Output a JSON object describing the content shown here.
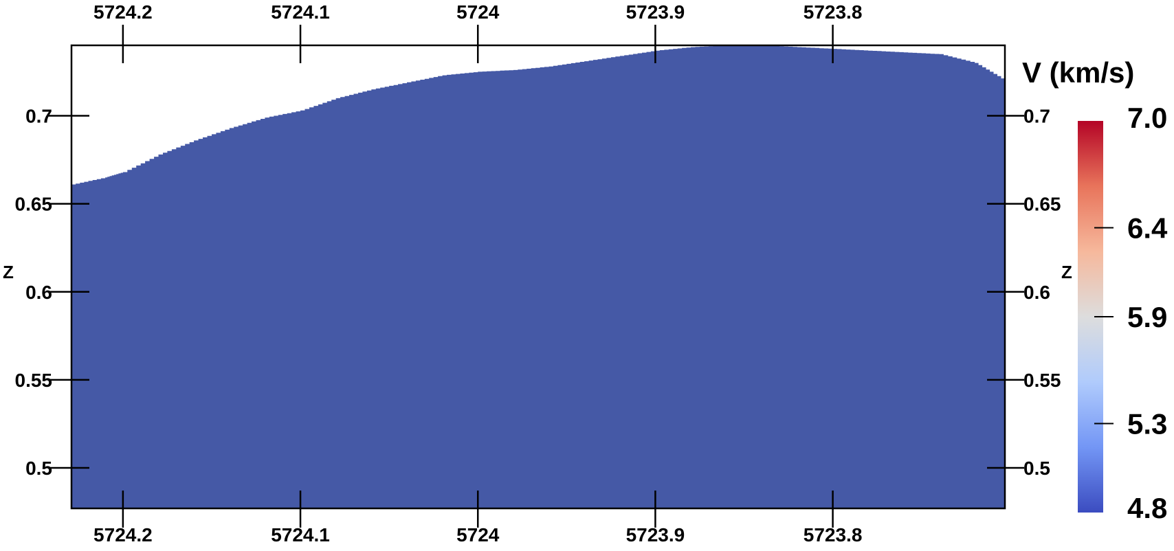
{
  "chart_data": {
    "type": "area",
    "x_axis": {
      "reversed": true,
      "range": [
        5724.229,
        5723.703
      ],
      "ticks": [
        "5724.2",
        "5724.1",
        "5724",
        "5723.9",
        "5723.8"
      ],
      "tick_values": [
        5724.2,
        5724.1,
        5724.0,
        5723.9,
        5723.8
      ]
    },
    "z_axis": {
      "label": "Z",
      "range": [
        0.477,
        0.74
      ],
      "ticks": [
        "0.7",
        "0.65",
        "0.6",
        "0.55",
        "0.5"
      ],
      "tick_values": [
        0.7,
        0.65,
        0.6,
        0.55,
        0.5
      ]
    },
    "surface": {
      "x": [
        5724.229,
        5724.21,
        5724.2,
        5724.18,
        5724.16,
        5724.14,
        5724.12,
        5724.1,
        5724.08,
        5724.06,
        5724.04,
        5724.02,
        5724.0,
        5723.98,
        5723.96,
        5723.94,
        5723.92,
        5723.9,
        5723.88,
        5723.86,
        5723.84,
        5723.82,
        5723.8,
        5723.78,
        5723.76,
        5723.74,
        5723.72,
        5723.703
      ],
      "z": [
        0.661,
        0.665,
        0.668,
        0.678,
        0.686,
        0.693,
        0.699,
        0.703,
        0.71,
        0.715,
        0.719,
        0.723,
        0.725,
        0.726,
        0.728,
        0.731,
        0.734,
        0.737,
        0.739,
        0.74,
        0.74,
        0.739,
        0.738,
        0.737,
        0.736,
        0.735,
        0.73,
        0.72
      ],
      "fill_value": 4.8,
      "fill_color": "#4559a6"
    },
    "colorbar": {
      "title": "V (km/s)",
      "min": 4.8,
      "max": 7.0,
      "labels": [
        "7.0",
        "6.4",
        "5.9",
        "5.3",
        "4.8"
      ],
      "label_values": [
        7.0,
        6.4,
        5.9,
        5.3,
        4.8
      ],
      "colors": [
        "#3b4cc0",
        "#7396f5",
        "#b0cbfc",
        "#dddddd",
        "#f6b89c",
        "#e8745b",
        "#b40426"
      ]
    }
  }
}
